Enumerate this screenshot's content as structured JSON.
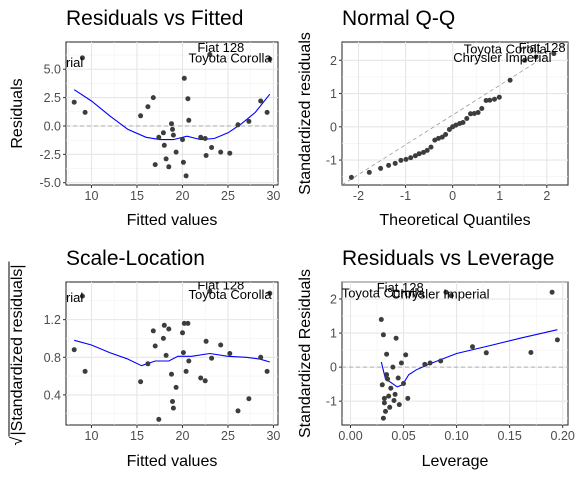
{
  "chart_data": [
    {
      "type": "scatter",
      "title": "Residuals vs Fitted",
      "xlabel": "Fitted values",
      "ylabel": "Residuals",
      "xlim": [
        7.2,
        30.5
      ],
      "ylim": [
        -5.2,
        7.4
      ],
      "xticks": [
        10,
        15,
        20,
        25,
        30
      ],
      "yticks": [
        -5.0,
        -2.5,
        0.0,
        2.5,
        5.0
      ],
      "ytick_labels": [
        "-5.0",
        "-2.5",
        "0.0",
        "2.5",
        "5.0"
      ],
      "grid": true,
      "reference_line": {
        "type": "horizontal",
        "y": 0
      },
      "points": [
        [
          8.1,
          2.1
        ],
        [
          9.0,
          6.0
        ],
        [
          9.3,
          1.2
        ],
        [
          15.4,
          0.9
        ],
        [
          16.2,
          1.7
        ],
        [
          16.8,
          2.5
        ],
        [
          17.0,
          -3.4
        ],
        [
          17.4,
          -1.0
        ],
        [
          17.9,
          -0.6
        ],
        [
          18.0,
          -1.7
        ],
        [
          18.2,
          -2.9
        ],
        [
          18.5,
          -3.6
        ],
        [
          18.8,
          0.2
        ],
        [
          18.9,
          -0.3
        ],
        [
          19.0,
          -0.8
        ],
        [
          19.3,
          -2.3
        ],
        [
          20.0,
          -1.2
        ],
        [
          20.1,
          -3.2
        ],
        [
          20.2,
          4.2
        ],
        [
          20.4,
          -4.4
        ],
        [
          20.6,
          2.4
        ],
        [
          20.7,
          0.5
        ],
        [
          22.0,
          -1.0
        ],
        [
          22.5,
          -1.1
        ],
        [
          22.6,
          -2.6
        ],
        [
          23.0,
          6.3
        ],
        [
          23.2,
          -1.9
        ],
        [
          24.2,
          -2.3
        ],
        [
          25.2,
          -2.4
        ],
        [
          26.1,
          0.1
        ],
        [
          27.3,
          0.4
        ],
        [
          28.6,
          2.2
        ],
        [
          29.3,
          1.2
        ],
        [
          29.6,
          5.9
        ]
      ],
      "smooth": [
        [
          8.1,
          3.2
        ],
        [
          10.0,
          2.2
        ],
        [
          12.0,
          0.9
        ],
        [
          14.0,
          -0.3
        ],
        [
          16.0,
          -1.0
        ],
        [
          17.5,
          -1.2
        ],
        [
          19.0,
          -1.2
        ],
        [
          20.5,
          -0.9
        ],
        [
          22.0,
          -1.2
        ],
        [
          23.5,
          -1.1
        ],
        [
          25.0,
          -0.6
        ],
        [
          26.5,
          0.2
        ],
        [
          28.0,
          1.2
        ],
        [
          29.6,
          2.8
        ]
      ],
      "point_labels": [
        {
          "text": "Fiat 128",
          "x": 26.8,
          "y": 6.5
        },
        {
          "text": "Toyota Corolla",
          "x": 29.8,
          "y": 5.6
        },
        {
          "text": "Chrysler Imperial",
          "x": 9.1,
          "y": 5.2
        }
      ]
    },
    {
      "type": "scatter",
      "title": "Normal Q-Q",
      "xlabel": "Theoretical Quantiles",
      "ylabel": "Standardized residuals",
      "xlim": [
        -2.35,
        2.45
      ],
      "ylim": [
        -1.75,
        2.55
      ],
      "xticks": [
        -2,
        -1,
        0,
        1,
        2
      ],
      "yticks": [
        -1,
        0,
        1,
        2
      ],
      "grid": true,
      "reference_line": {
        "type": "diagonal",
        "from": [
          -2.35,
          -1.75
        ],
        "to": [
          2.45,
          2.55
        ]
      },
      "points": [
        [
          -2.15,
          -1.52
        ],
        [
          -1.77,
          -1.37
        ],
        [
          -1.53,
          -1.25
        ],
        [
          -1.36,
          -1.16
        ],
        [
          -1.22,
          -1.1
        ],
        [
          -1.1,
          -1.01
        ],
        [
          -0.99,
          -0.98
        ],
        [
          -0.89,
          -0.93
        ],
        [
          -0.79,
          -0.87
        ],
        [
          -0.71,
          -0.81
        ],
        [
          -0.62,
          -0.77
        ],
        [
          -0.54,
          -0.71
        ],
        [
          -0.46,
          -0.61
        ],
        [
          -0.38,
          -0.4
        ],
        [
          -0.3,
          -0.35
        ],
        [
          -0.22,
          -0.31
        ],
        [
          -0.15,
          -0.23
        ],
        [
          -0.07,
          -0.08
        ],
        [
          0.0,
          0.0
        ],
        [
          0.07,
          0.05
        ],
        [
          0.15,
          0.1
        ],
        [
          0.22,
          0.13
        ],
        [
          0.3,
          0.25
        ],
        [
          0.38,
          0.39
        ],
        [
          0.46,
          0.4
        ],
        [
          0.54,
          0.43
        ],
        [
          0.62,
          0.55
        ],
        [
          0.71,
          0.79
        ],
        [
          0.79,
          0.8
        ],
        [
          0.89,
          0.83
        ],
        [
          0.99,
          0.89
        ],
        [
          1.22,
          1.4
        ],
        [
          1.53,
          2.0
        ],
        [
          1.77,
          2.1
        ],
        [
          2.15,
          2.2
        ]
      ],
      "point_labels": [
        {
          "text": "Toyota Corolla",
          "x": 2.0,
          "y": 2.2
        },
        {
          "text": "Chrysler Imperial",
          "x": 2.1,
          "y": 1.95
        },
        {
          "text": "Fiat 128",
          "x": 2.4,
          "y": 2.25
        }
      ]
    },
    {
      "type": "scatter",
      "title": "Scale-Location",
      "xlabel": "Fitted values",
      "ylabel": "√|Standardized residuals|",
      "ylabel_radical": "√",
      "ylabel_text": "|Standardized residuals|",
      "xlim": [
        7.2,
        30.5
      ],
      "ylim": [
        0.08,
        1.6
      ],
      "xticks": [
        10,
        15,
        20,
        25,
        30
      ],
      "yticks": [
        0.4,
        0.8,
        1.2
      ],
      "grid": true,
      "points": [
        [
          8.1,
          0.88
        ],
        [
          9.0,
          1.45
        ],
        [
          9.3,
          0.65
        ],
        [
          15.4,
          0.54
        ],
        [
          16.2,
          0.73
        ],
        [
          16.8,
          1.08
        ],
        [
          17.0,
          0.92
        ],
        [
          17.4,
          0.14
        ],
        [
          17.9,
          1.0
        ],
        [
          18.0,
          1.14
        ],
        [
          18.2,
          0.82
        ],
        [
          18.5,
          1.1
        ],
        [
          18.8,
          0.62
        ],
        [
          18.9,
          0.33
        ],
        [
          19.0,
          0.26
        ],
        [
          19.3,
          0.48
        ],
        [
          20.0,
          1.06
        ],
        [
          20.1,
          0.85
        ],
        [
          20.2,
          1.16
        ],
        [
          20.4,
          0.65
        ],
        [
          20.6,
          1.16
        ],
        [
          20.7,
          0.76
        ],
        [
          22.0,
          0.58
        ],
        [
          22.5,
          0.55
        ],
        [
          22.6,
          0.97
        ],
        [
          23.0,
          1.5
        ],
        [
          23.2,
          0.79
        ],
        [
          24.2,
          0.93
        ],
        [
          25.2,
          0.84
        ],
        [
          26.1,
          0.23
        ],
        [
          27.3,
          0.36
        ],
        [
          28.6,
          0.8
        ],
        [
          29.3,
          0.65
        ],
        [
          29.6,
          1.48
        ]
      ],
      "smooth": [
        [
          8.1,
          0.98
        ],
        [
          10.0,
          0.93
        ],
        [
          12.0,
          0.85
        ],
        [
          14.0,
          0.78
        ],
        [
          15.5,
          0.71
        ],
        [
          17.0,
          0.76
        ],
        [
          18.5,
          0.76
        ],
        [
          19.5,
          0.81
        ],
        [
          21.0,
          0.81
        ],
        [
          23.0,
          0.84
        ],
        [
          25.0,
          0.81
        ],
        [
          27.0,
          0.8
        ],
        [
          28.5,
          0.78
        ],
        [
          29.6,
          0.75
        ]
      ],
      "point_labels": [
        {
          "text": "Fiat 128",
          "x": 26.8,
          "y": 1.52
        },
        {
          "text": "Toyota Corolla",
          "x": 29.8,
          "y": 1.42
        },
        {
          "text": "Chrysler Imperial",
          "x": 9.1,
          "y": 1.39
        }
      ]
    },
    {
      "type": "scatter",
      "title": "Residuals vs Leverage",
      "xlabel": "Leverage",
      "ylabel": "Standardized Residuals",
      "xlim": [
        -0.008,
        0.205
      ],
      "ylim": [
        -1.7,
        2.5
      ],
      "xticks": [
        0.0,
        0.05,
        0.1,
        0.15,
        0.2
      ],
      "xtick_labels": [
        "0.00",
        "0.05",
        "0.10",
        "0.15",
        "0.20"
      ],
      "yticks": [
        -1,
        0,
        1,
        2
      ],
      "grid": true,
      "reference_line": {
        "type": "horizontal",
        "y": 0
      },
      "points": [
        [
          0.029,
          1.4
        ],
        [
          0.03,
          -0.52
        ],
        [
          0.031,
          -1.5
        ],
        [
          0.031,
          0.95
        ],
        [
          0.032,
          -1.05
        ],
        [
          0.032,
          -0.92
        ],
        [
          0.033,
          -1.3
        ],
        [
          0.034,
          0.38
        ],
        [
          0.034,
          -0.22
        ],
        [
          0.035,
          -0.35
        ],
        [
          0.036,
          -0.85
        ],
        [
          0.037,
          -1.18
        ],
        [
          0.038,
          -0.62
        ],
        [
          0.04,
          0.0
        ],
        [
          0.041,
          -0.98
        ],
        [
          0.042,
          -0.8
        ],
        [
          0.043,
          0.85
        ],
        [
          0.045,
          -0.32
        ],
        [
          0.046,
          -1.1
        ],
        [
          0.048,
          0.12
        ],
        [
          0.05,
          -0.48
        ],
        [
          0.052,
          0.36
        ],
        [
          0.054,
          -0.92
        ],
        [
          0.07,
          0.08
        ],
        [
          0.075,
          0.12
        ],
        [
          0.085,
          0.18
        ],
        [
          0.09,
          2.2
        ],
        [
          0.095,
          2.1
        ],
        [
          0.115,
          0.6
        ],
        [
          0.128,
          0.42
        ],
        [
          0.17,
          0.43
        ],
        [
          0.19,
          2.2
        ],
        [
          0.195,
          0.8
        ]
      ],
      "smooth": [
        [
          0.029,
          0.15
        ],
        [
          0.033,
          -0.35
        ],
        [
          0.038,
          -0.45
        ],
        [
          0.044,
          -0.58
        ],
        [
          0.049,
          -0.52
        ],
        [
          0.055,
          -0.22
        ],
        [
          0.062,
          -0.08
        ],
        [
          0.075,
          0.1
        ],
        [
          0.1,
          0.4
        ],
        [
          0.13,
          0.62
        ],
        [
          0.16,
          0.85
        ],
        [
          0.195,
          1.1
        ]
      ],
      "point_labels": [
        {
          "text": "Fiat 128",
          "x": 0.069,
          "y": 2.2
        },
        {
          "text": "Toyota Corolla",
          "x": 0.07,
          "y": 2.05
        },
        {
          "text": "Chrysler Imperial",
          "x": 0.131,
          "y": 2.02
        }
      ]
    }
  ]
}
